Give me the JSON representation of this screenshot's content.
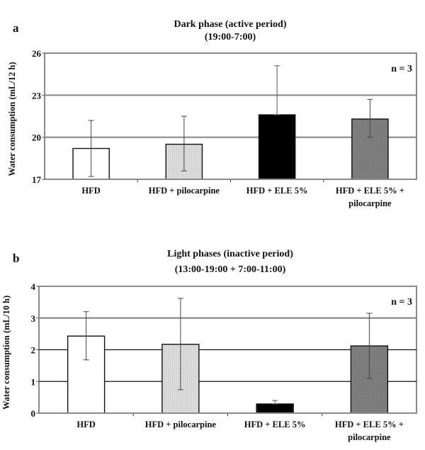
{
  "chart_data": [
    {
      "type": "bar",
      "panel_label": "a",
      "title": "Dark phase (active period)",
      "subtitle": "(19:00-7:00)",
      "xlabel": "",
      "ylabel": "Water consumption  (mL/12 h)",
      "ylim": [
        17,
        26
      ],
      "yticks": [
        "17",
        "20",
        "23",
        "26"
      ],
      "ytick_values": [
        17,
        20,
        23,
        26
      ],
      "grid": true,
      "annotation": "n = 3",
      "categories": [
        [
          "HFD"
        ],
        [
          "HFD + pilocarpine"
        ],
        [
          "HFD + ELE 5%"
        ],
        [
          "HFD + ELE 5% +",
          "pilocarpine"
        ]
      ],
      "values": [
        19.2,
        19.5,
        21.6,
        21.3
      ],
      "error_upper": [
        21.2,
        21.5,
        25.1,
        22.7
      ],
      "error_lower": [
        17.2,
        17.6,
        21.6,
        20.0
      ],
      "colors": [
        "#ffffff",
        "#d9d9d9",
        "#000000",
        "#808080"
      ]
    },
    {
      "type": "bar",
      "panel_label": "b",
      "title": "Light phases (inactive period)",
      "subtitle": "(13:00-19:00 + 7:00-11:00)",
      "xlabel": "",
      "ylabel": "Water consumption  (mL/10 h)",
      "ylim": [
        0,
        4
      ],
      "yticks": [
        "0",
        "1",
        "2",
        "3",
        "4"
      ],
      "ytick_values": [
        0,
        1,
        2,
        3,
        4
      ],
      "grid": true,
      "annotation": "n = 3",
      "categories": [
        [
          "HFD"
        ],
        [
          "HFD + pilocarpine"
        ],
        [
          "HFD + ELE 5%"
        ],
        [
          "HFD + ELE 5% +",
          "pilocarpine"
        ]
      ],
      "values": [
        2.43,
        2.17,
        0.29,
        2.12
      ],
      "error_upper": [
        3.2,
        3.62,
        0.4,
        3.15
      ],
      "error_lower": [
        1.68,
        0.74,
        0.29,
        1.1
      ],
      "colors": [
        "#ffffff",
        "#d9d9d9",
        "#000000",
        "#808080"
      ]
    }
  ]
}
